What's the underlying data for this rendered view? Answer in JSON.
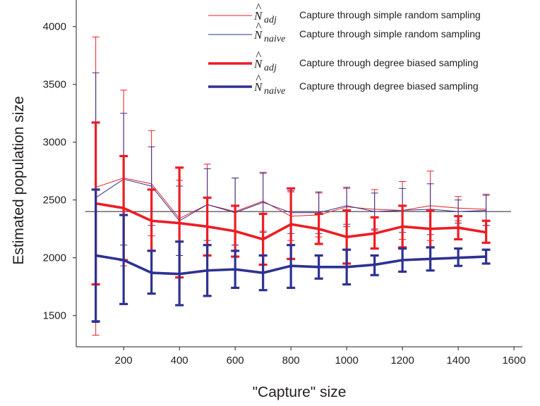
{
  "chart_data": {
    "type": "line",
    "xlabel": "\"Capture\" size",
    "ylabel": "Estimated population size",
    "xlim": [
      30,
      1630
    ],
    "ylim": [
      1230,
      4230
    ],
    "xticks": [
      200,
      400,
      600,
      800,
      1000,
      1200,
      1400,
      1600
    ],
    "yticks": [
      1500,
      2000,
      2500,
      3000,
      3500,
      4000
    ],
    "legend_position": "top-right",
    "reference_line": 2400,
    "x": [
      100,
      200,
      300,
      400,
      500,
      600,
      700,
      800,
      900,
      1000,
      1100,
      1200,
      1300,
      1400,
      1500
    ],
    "series": [
      {
        "symbol": "N",
        "subscript": "adj",
        "name": "Capture through simple random sampling",
        "color": "#ed1c24",
        "line_weight": "thin",
        "values": [
          2610,
          2690,
          2640,
          2340,
          2460,
          2400,
          2490,
          2360,
          2370,
          2440,
          2420,
          2410,
          2450,
          2430,
          2420
        ],
        "err_low": [
          1330,
          1930,
          2190,
          2020,
          2110,
          2110,
          2230,
          2150,
          2180,
          2270,
          2250,
          2160,
          2150,
          2320,
          2280
        ],
        "err_high": [
          3910,
          3450,
          3100,
          2670,
          2810,
          2690,
          2740,
          2570,
          2560,
          2600,
          2590,
          2660,
          2750,
          2530,
          2550
        ]
      },
      {
        "symbol": "N",
        "subscript": "naive",
        "name": "Capture through simple random sampling",
        "color": "#2e3192",
        "line_weight": "thin",
        "values": [
          2520,
          2680,
          2620,
          2320,
          2460,
          2390,
          2480,
          2390,
          2390,
          2450,
          2400,
          2410,
          2420,
          2400,
          2410
        ],
        "err_low": [
          1440,
          2110,
          2280,
          2020,
          2150,
          2110,
          2220,
          2210,
          2210,
          2290,
          2240,
          2220,
          2200,
          2300,
          2280
        ],
        "err_high": [
          3600,
          3250,
          2960,
          2620,
          2770,
          2690,
          2730,
          2580,
          2570,
          2610,
          2560,
          2600,
          2640,
          2500,
          2540
        ]
      },
      {
        "symbol": "N",
        "subscript": "adj",
        "name": "Capture through degree biased sampling",
        "color": "#ed1c24",
        "line_weight": "thick",
        "values": [
          2470,
          2430,
          2320,
          2300,
          2270,
          2230,
          2160,
          2290,
          2250,
          2180,
          2210,
          2270,
          2250,
          2260,
          2220
        ],
        "err_low": [
          1770,
          1980,
          2060,
          1830,
          2020,
          2010,
          1940,
          1990,
          2120,
          1950,
          2080,
          2090,
          2090,
          2160,
          2130
        ],
        "err_high": [
          3170,
          2880,
          2590,
          2780,
          2520,
          2450,
          2380,
          2600,
          2380,
          2410,
          2350,
          2450,
          2410,
          2360,
          2320
        ]
      },
      {
        "symbol": "N",
        "subscript": "naive",
        "name": "Capture through degree biased sampling",
        "color": "#2e3192",
        "line_weight": "thick",
        "values": [
          2020,
          1980,
          1870,
          1860,
          1890,
          1900,
          1870,
          1930,
          1920,
          1920,
          1940,
          1980,
          1990,
          2000,
          2010
        ],
        "err_low": [
          1450,
          1600,
          1690,
          1590,
          1670,
          1740,
          1720,
          1740,
          1820,
          1770,
          1850,
          1880,
          1890,
          1930,
          1950
        ],
        "err_high": [
          2590,
          2370,
          2060,
          2140,
          2110,
          2060,
          2020,
          2110,
          2020,
          2070,
          2020,
          2080,
          2090,
          2080,
          2070
        ]
      }
    ]
  }
}
